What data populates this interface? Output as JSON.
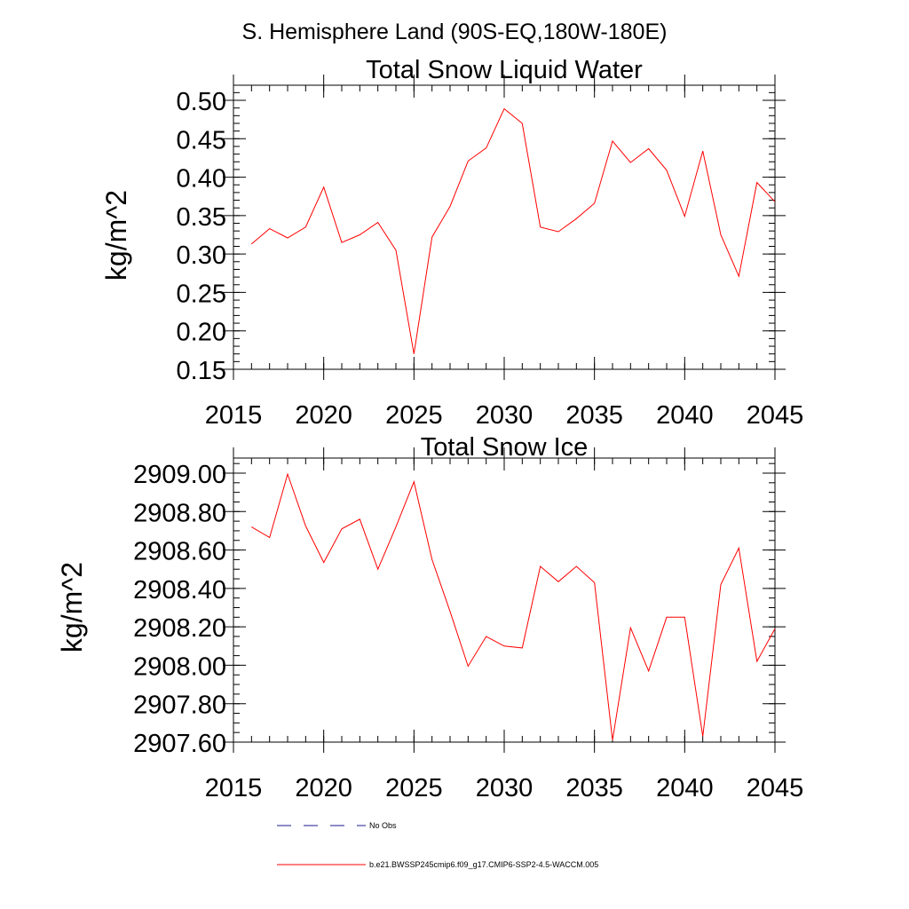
{
  "figure_title": "S. Hemisphere Land (90S-EQ,180W-180E)",
  "colors": {
    "series": "#ff0000",
    "noobs": "#1a1a8c",
    "axis": "#000000"
  },
  "chart_data": [
    {
      "type": "line",
      "title": "Total Snow Liquid Water",
      "xlabel": "",
      "ylabel": "kg/m^2",
      "xlim": [
        2015,
        2045
      ],
      "ylim": [
        0.15,
        0.5
      ],
      "x_ticks": [
        2015,
        2020,
        2025,
        2030,
        2035,
        2040,
        2045
      ],
      "x_tick_labels": [
        "2015",
        "2020",
        "2025",
        "2030",
        "2035",
        "2040",
        "2045"
      ],
      "y_ticks": [
        0.15,
        0.2,
        0.25,
        0.3,
        0.35,
        0.4,
        0.45,
        0.5
      ],
      "y_tick_labels": [
        "0.15",
        "0.20",
        "0.25",
        "0.30",
        "0.35",
        "0.40",
        "0.45",
        "0.50"
      ],
      "y_minor_step": 0.01,
      "x_minor_step": 1,
      "series": [
        {
          "name": "b.e21.BWSSP245cmip6.f09_g17.CMIP6-SSP2-4.5-WACCM.005",
          "x": [
            2016,
            2017,
            2018,
            2019,
            2020,
            2021,
            2022,
            2023,
            2024,
            2025,
            2026,
            2027,
            2028,
            2029,
            2030,
            2031,
            2032,
            2033,
            2034,
            2035,
            2036,
            2037,
            2038,
            2039,
            2040,
            2041,
            2042,
            2043,
            2044,
            2045
          ],
          "values": [
            0.313,
            0.333,
            0.321,
            0.335,
            0.387,
            0.315,
            0.325,
            0.341,
            0.305,
            0.17,
            0.322,
            0.362,
            0.421,
            0.438,
            0.489,
            0.47,
            0.335,
            0.329,
            0.346,
            0.366,
            0.447,
            0.419,
            0.437,
            0.409,
            0.349,
            0.434,
            0.325,
            0.271,
            0.393,
            0.368
          ]
        }
      ]
    },
    {
      "type": "line",
      "title": "Total Snow Ice",
      "xlabel": "",
      "ylabel": "kg/m^2",
      "xlim": [
        2015,
        2045
      ],
      "ylim": [
        2907.6,
        2909.0
      ],
      "x_ticks": [
        2015,
        2020,
        2025,
        2030,
        2035,
        2040,
        2045
      ],
      "x_tick_labels": [
        "2015",
        "2020",
        "2025",
        "2030",
        "2035",
        "2040",
        "2045"
      ],
      "y_ticks": [
        2907.6,
        2907.8,
        2908.0,
        2908.2,
        2908.4,
        2908.6,
        2908.8,
        2909.0
      ],
      "y_tick_labels": [
        "2907.60",
        "2907.80",
        "2908.00",
        "2908.20",
        "2908.40",
        "2908.60",
        "2908.80",
        "2909.00"
      ],
      "y_minor_step": 0.05,
      "x_minor_step": 1,
      "series": [
        {
          "name": "b.e21.BWSSP245cmip6.f09_g17.CMIP6-SSP2-4.5-WACCM.005",
          "x": [
            2016,
            2017,
            2018,
            2019,
            2020,
            2021,
            2022,
            2023,
            2024,
            2025,
            2026,
            2027,
            2028,
            2029,
            2030,
            2031,
            2032,
            2033,
            2034,
            2035,
            2036,
            2037,
            2038,
            2039,
            2040,
            2041,
            2042,
            2043,
            2044,
            2045
          ],
          "values": [
            2908.72,
            2908.665,
            2908.995,
            2908.725,
            2908.535,
            2908.71,
            2908.76,
            2908.5,
            2908.72,
            2908.955,
            2908.55,
            2908.28,
            2907.995,
            2908.15,
            2908.1,
            2908.09,
            2908.515,
            2908.435,
            2908.515,
            2908.43,
            2907.61,
            2908.195,
            2907.97,
            2908.25,
            2908.25,
            2907.63,
            2908.42,
            2908.61,
            2908.02,
            2908.19
          ]
        }
      ]
    }
  ],
  "legend": {
    "items": [
      {
        "label": "No Obs",
        "style": "dashed"
      },
      {
        "label": "b.e21.BWSSP245cmip6.f09_g17.CMIP6-SSP2-4.5-WACCM.005",
        "style": "solid"
      }
    ]
  }
}
